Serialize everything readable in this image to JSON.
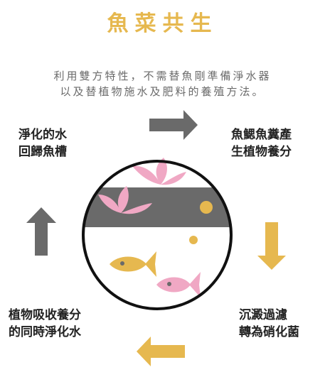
{
  "title": "魚菜共生",
  "subtitle": {
    "line1": "利用雙方特性，不需替魚剛準備淨水器",
    "line2": "以及替植物施水及肥料的養殖方法。"
  },
  "cycle": {
    "top_left": {
      "line1": "淨化的水",
      "line2": "回歸魚槽"
    },
    "top_right": {
      "line1": "魚鰓魚糞產",
      "line2": "生植物養分"
    },
    "bottom_right": {
      "line1": "沉澱過濾",
      "line2": "轉為硝化菌"
    },
    "bottom_left": {
      "line1": "植物吸收養分",
      "line2": "的同時淨化水"
    }
  },
  "icons": {
    "arrow_top": "arrow-right-icon",
    "arrow_right": "arrow-down-icon",
    "arrow_bottom": "arrow-left-icon",
    "arrow_left": "arrow-up-icon",
    "plants": "lotus-icon",
    "fish": "fish-icon"
  },
  "colors": {
    "accent": "#e6b84f",
    "dark": "#6a6a6a",
    "pink": "#f0a8c4",
    "text": "#222222",
    "subtitle": "#6b6b6b"
  }
}
